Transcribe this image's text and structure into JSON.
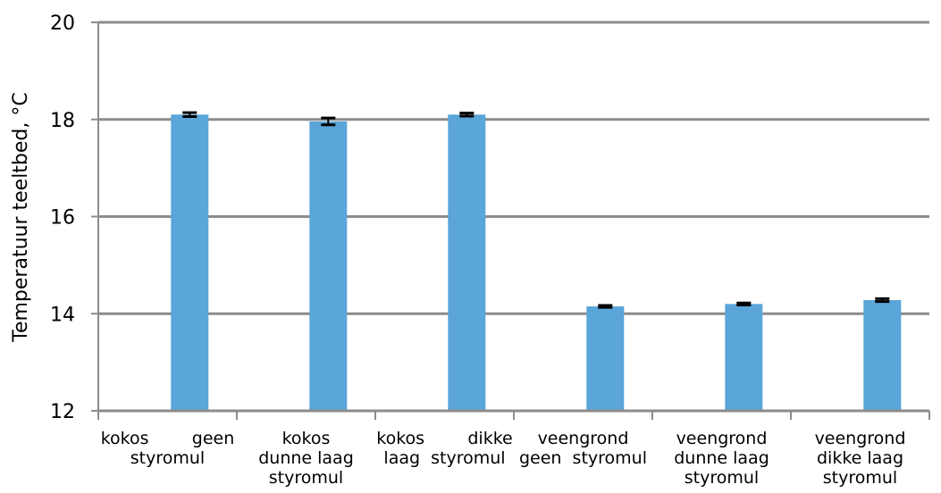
{
  "chart_data": {
    "type": "bar",
    "title": "",
    "xlabel": "",
    "ylabel": "Temperatuur teeltbed, °C",
    "ylim": [
      12,
      20
    ],
    "yticks": [
      12,
      14,
      16,
      18,
      20
    ],
    "grid": true,
    "legend": "none",
    "bar_color": "#5aa5d9",
    "grid_color": "#8c8c8c",
    "categories": [
      [
        "kokos        geen",
        "styromul"
      ],
      [
        "kokos",
        "dunne laag",
        "styromul"
      ],
      [
        "kokos        dikke",
        "laag  styromul"
      ],
      [
        "veengrond",
        "geen  styromul"
      ],
      [
        "veengrond",
        "dunne laag",
        "styromul"
      ],
      [
        "veengrond",
        "dikke laag",
        "styromul"
      ]
    ],
    "values": [
      18.1,
      17.96,
      18.1,
      14.15,
      14.2,
      14.28
    ],
    "errors": [
      0.04,
      0.07,
      0.03,
      0.02,
      0.02,
      0.03
    ]
  }
}
